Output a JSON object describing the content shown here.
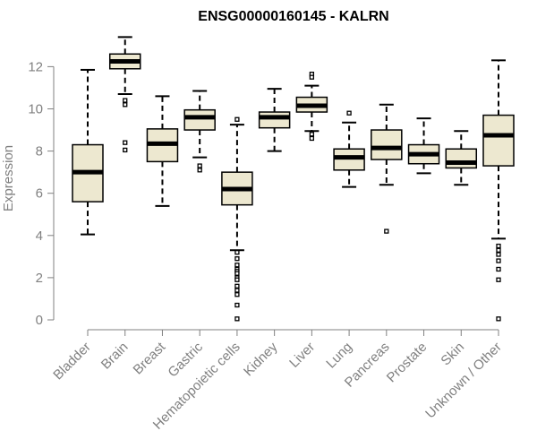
{
  "chart_data": {
    "type": "boxplot",
    "title": "ENSG00000160145 - KALRN",
    "ylabel": "Expression",
    "ylim": [
      0,
      12.5
    ],
    "yticks": [
      0,
      2,
      4,
      6,
      8,
      10,
      12
    ],
    "box_fill": "#ede8d0",
    "line_color": "#000000",
    "axis_color": "#808080",
    "categories": [
      "Bladder",
      "Brain",
      "Breast",
      "Gastric",
      "Hematopoietic cells",
      "Kidney",
      "Liver",
      "Lung",
      "Pancreas",
      "Prostate",
      "Skin",
      "Unknown / Other"
    ],
    "boxes": [
      {
        "name": "Bladder",
        "whisker_low": 4.05,
        "q1": 5.6,
        "median": 7.0,
        "q3": 8.3,
        "whisker_high": 11.85,
        "outliers": []
      },
      {
        "name": "Brain",
        "whisker_low": 10.7,
        "q1": 11.9,
        "median": 12.25,
        "q3": 12.6,
        "whisker_high": 13.4,
        "outliers": [
          10.4,
          10.2,
          8.4,
          8.05
        ]
      },
      {
        "name": "Breast",
        "whisker_low": 5.4,
        "q1": 7.5,
        "median": 8.35,
        "q3": 9.05,
        "whisker_high": 10.6,
        "outliers": []
      },
      {
        "name": "Gastric",
        "whisker_low": 7.7,
        "q1": 9.0,
        "median": 9.6,
        "q3": 9.95,
        "whisker_high": 10.85,
        "outliers": [
          7.3,
          7.1
        ]
      },
      {
        "name": "Hematopoietic cells",
        "whisker_low": 3.3,
        "q1": 5.45,
        "median": 6.2,
        "q3": 7.0,
        "whisker_high": 9.25,
        "outliers": [
          9.5,
          3.2,
          2.9,
          2.6,
          2.4,
          2.3,
          2.2,
          2.0,
          1.9,
          1.6,
          1.4,
          1.2,
          0.7,
          0.05
        ]
      },
      {
        "name": "Kidney",
        "whisker_low": 8.0,
        "q1": 9.1,
        "median": 9.6,
        "q3": 9.85,
        "whisker_high": 10.95,
        "outliers": []
      },
      {
        "name": "Liver",
        "whisker_low": 8.95,
        "q1": 9.85,
        "median": 10.15,
        "q3": 10.55,
        "whisker_high": 11.1,
        "outliers": [
          11.65,
          11.5,
          8.8,
          8.6
        ]
      },
      {
        "name": "Lung",
        "whisker_low": 6.3,
        "q1": 7.1,
        "median": 7.7,
        "q3": 8.1,
        "whisker_high": 9.35,
        "outliers": [
          9.8
        ]
      },
      {
        "name": "Pancreas",
        "whisker_low": 6.4,
        "q1": 7.6,
        "median": 8.15,
        "q3": 9.0,
        "whisker_high": 10.2,
        "outliers": [
          4.2
        ]
      },
      {
        "name": "Prostate",
        "whisker_low": 6.95,
        "q1": 7.4,
        "median": 7.85,
        "q3": 8.3,
        "whisker_high": 9.55,
        "outliers": []
      },
      {
        "name": "Skin",
        "whisker_low": 6.4,
        "q1": 7.2,
        "median": 7.45,
        "q3": 8.1,
        "whisker_high": 8.95,
        "outliers": []
      },
      {
        "name": "Unknown / Other",
        "whisker_low": 3.85,
        "q1": 7.3,
        "median": 8.75,
        "q3": 9.7,
        "whisker_high": 12.3,
        "outliers": [
          3.5,
          3.3,
          3.1,
          2.8,
          2.4,
          1.9,
          0.05
        ]
      }
    ]
  }
}
